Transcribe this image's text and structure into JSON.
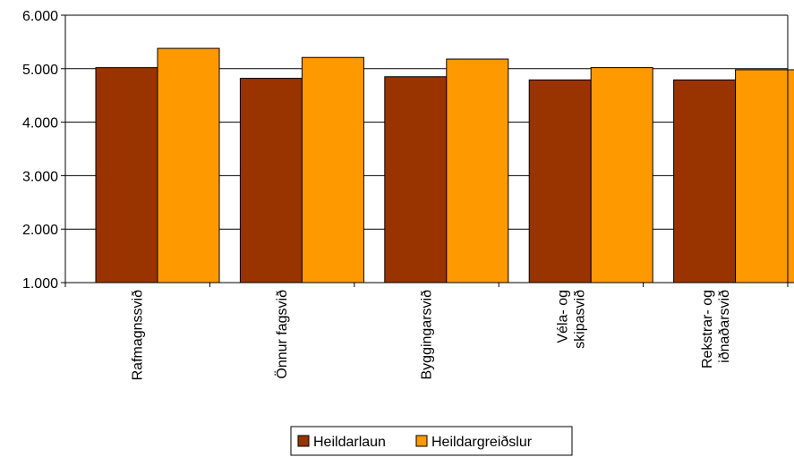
{
  "chart_data": {
    "type": "bar",
    "categories": [
      [
        "Rafmagnssvið"
      ],
      [
        "Önnur fagsvið"
      ],
      [
        "Byggingarsvið"
      ],
      [
        "Véla- og",
        "skipasvið"
      ],
      [
        "Rekstrar- og",
        "iðnaðarsvið"
      ]
    ],
    "series": [
      {
        "name": "Heildarlaun",
        "color": "#993300",
        "values": [
          5020,
          4820,
          4850,
          4790,
          4790
        ]
      },
      {
        "name": "Heildargreiðslur",
        "color": "#FF9900",
        "values": [
          5380,
          5210,
          5180,
          5020,
          4980
        ]
      }
    ],
    "yticks": [
      "1.000",
      "2.000",
      "3.000",
      "4.000",
      "5.000",
      "6.000"
    ],
    "ylim": [
      1000,
      6000
    ],
    "grid": true,
    "legend": "bottom-center"
  }
}
